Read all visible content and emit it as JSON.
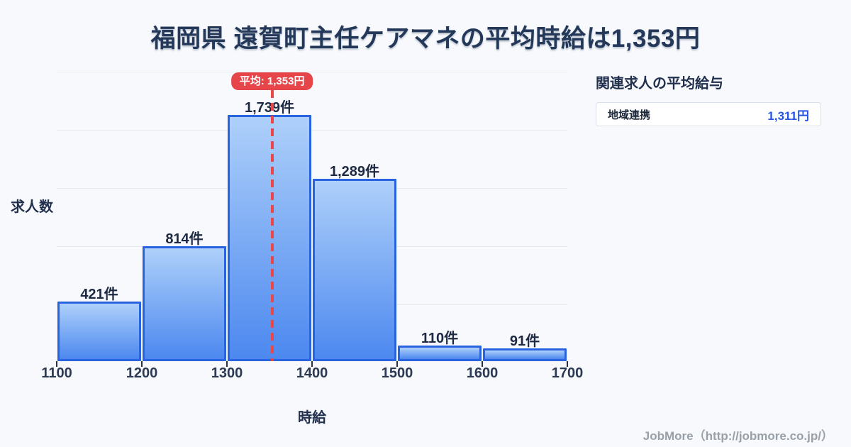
{
  "title": "福岡県 遠賀町主任ケアマネの平均時給は1,353円",
  "chart_data": {
    "type": "bar",
    "subtype": "histogram",
    "bin_edges": [
      1100,
      1200,
      1300,
      1400,
      1500,
      1600,
      1700
    ],
    "values": [
      421,
      814,
      1739,
      1289,
      110,
      91
    ],
    "bar_labels": [
      "421件",
      "814件",
      "1,739件",
      "1,289件",
      "110件",
      "91件"
    ],
    "xlabel": "時給",
    "ylabel": "求人数",
    "xlim": [
      1100,
      1700
    ],
    "ylim": [
      0,
      2045
    ],
    "grid": "horizontal",
    "gridline_count": 5,
    "average": {
      "value": 1353,
      "label": "平均: 1,353円"
    },
    "colors": {
      "bar_fill_top": "#aed0fa",
      "bar_fill_bottom": "#4c88ef",
      "bar_border": "#2a63e0",
      "average_red": "#e64549",
      "gridline": "#e7eaf1",
      "text_dark": "#24395a"
    }
  },
  "side_panel": {
    "heading": "関連求人の平均給与",
    "rows": [
      {
        "label": "地域連携",
        "value": "1,311円"
      }
    ]
  },
  "footer": {
    "credit": "JobMore（http://jobmore.co.jp/）"
  }
}
